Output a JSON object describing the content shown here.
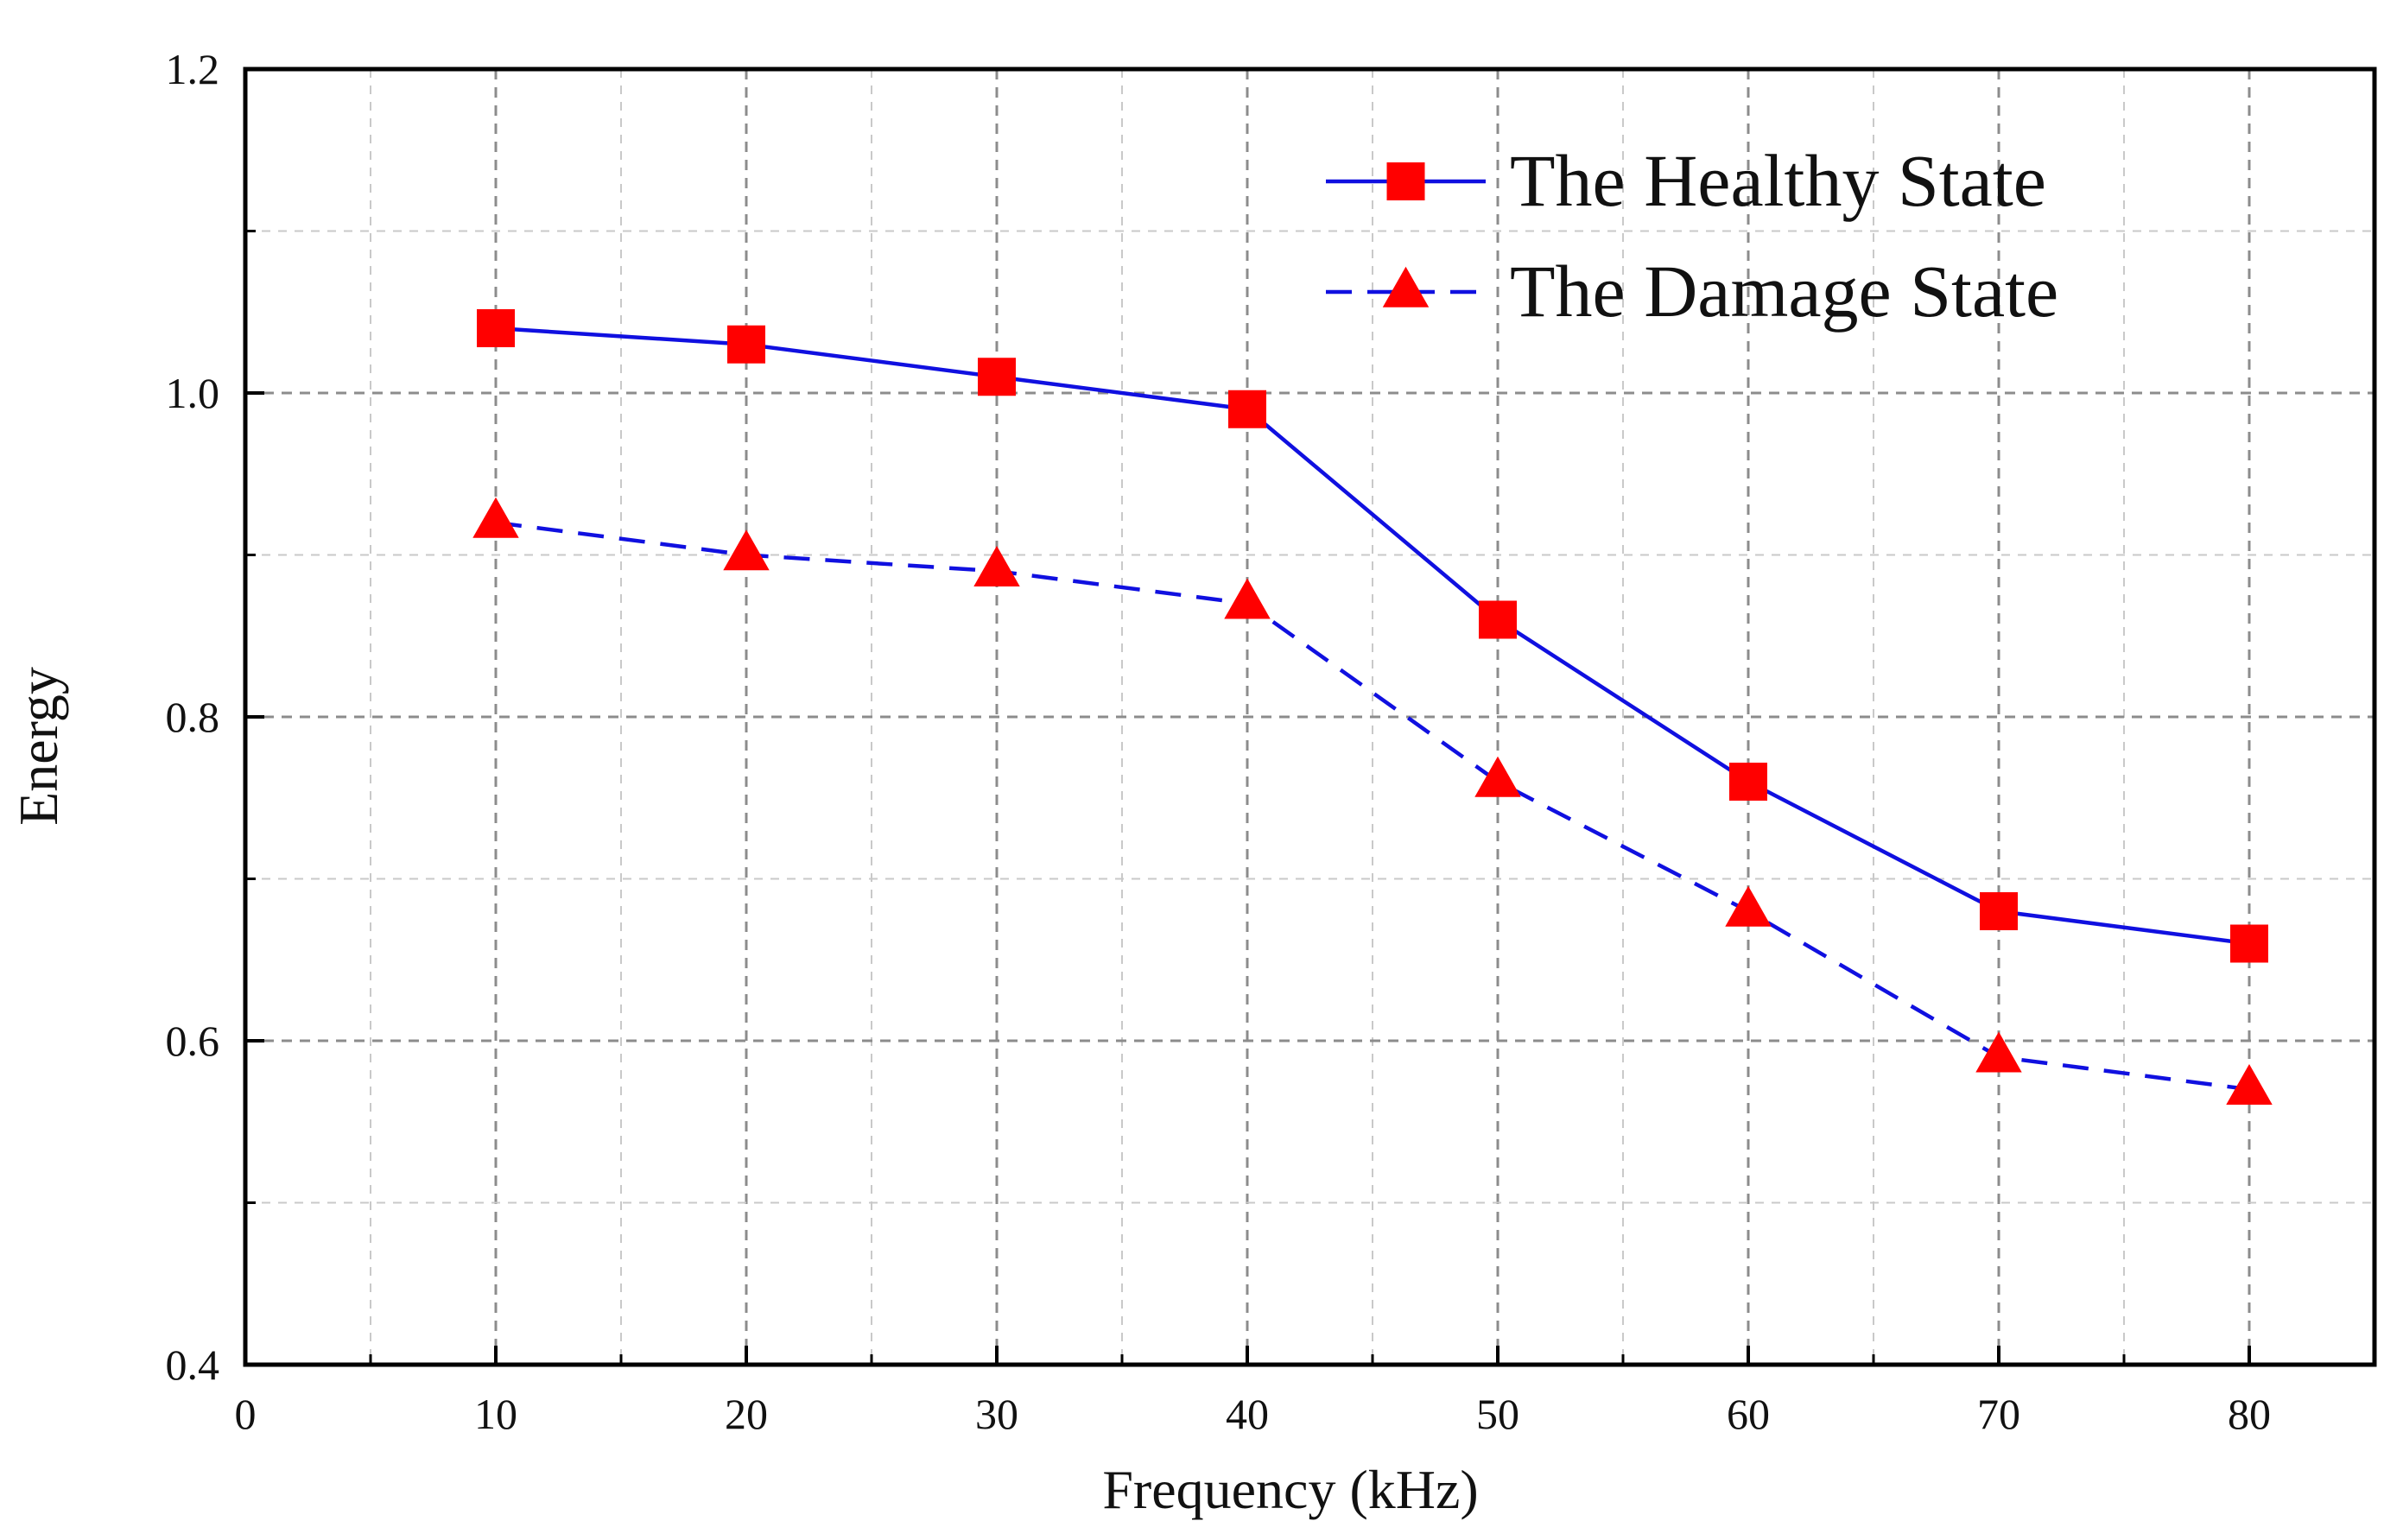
{
  "chart_data": {
    "type": "line",
    "title": "",
    "xlabel": "Frequency (kHz)",
    "ylabel": "Energy",
    "xlim": [
      0,
      85
    ],
    "ylim": [
      0.4,
      1.2
    ],
    "x_ticks": [
      0,
      10,
      20,
      30,
      40,
      50,
      60,
      70,
      80
    ],
    "x_tick_labels": [
      "0",
      "10",
      "20",
      "30",
      "40",
      "50",
      "60",
      "70",
      "80"
    ],
    "x_minor_ticks": [
      5,
      15,
      25,
      35,
      45,
      55,
      65,
      75
    ],
    "y_ticks": [
      0.4,
      0.6,
      0.8,
      1.0,
      1.2
    ],
    "y_tick_labels": [
      "0.4",
      "0.6",
      "0.8",
      "1.0",
      "1.2"
    ],
    "y_minor_ticks": [
      0.5,
      0.7,
      0.9,
      1.1
    ],
    "grid": true,
    "legend_position": "top-right",
    "x": [
      10,
      20,
      30,
      40,
      50,
      60,
      70,
      80
    ],
    "series": [
      {
        "name": "The Healthy State",
        "values": [
          1.04,
          1.03,
          1.01,
          0.99,
          0.86,
          0.76,
          0.68,
          0.66
        ],
        "line_color": "#1010e0",
        "marker_color": "#ff0000",
        "line_style": "solid",
        "marker": "square"
      },
      {
        "name": "The Damage State",
        "values": [
          0.92,
          0.9,
          0.89,
          0.87,
          0.76,
          0.68,
          0.59,
          0.57
        ],
        "line_color": "#1010e0",
        "marker_color": "#ff0000",
        "line_style": "dashed",
        "marker": "triangle"
      }
    ]
  }
}
